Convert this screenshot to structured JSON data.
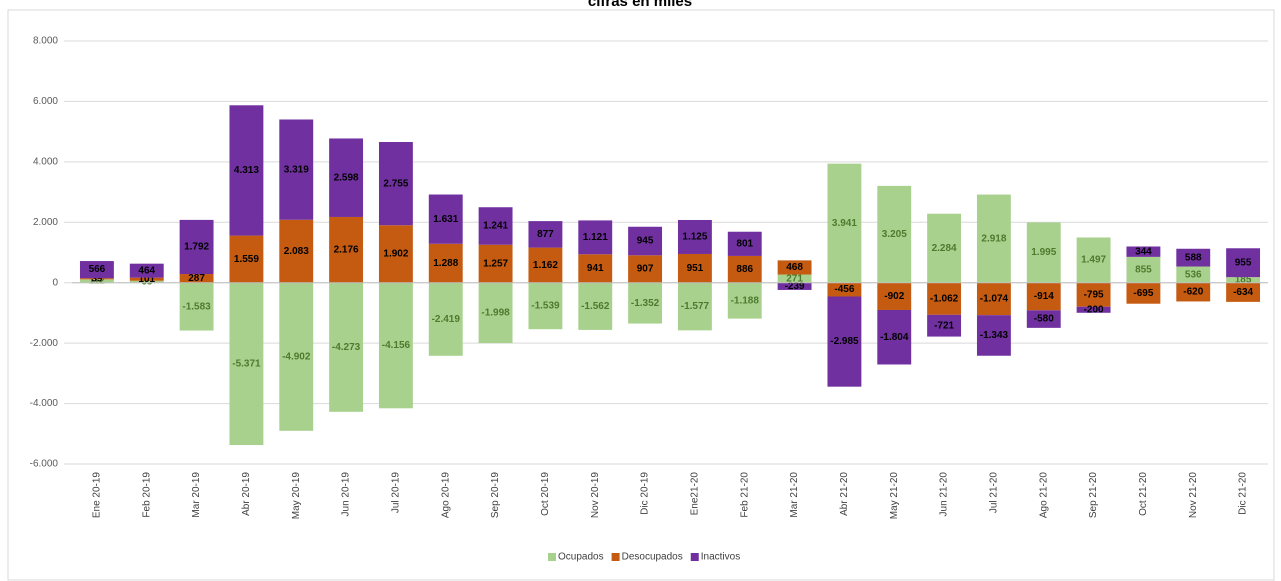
{
  "chart_data": {
    "type": "bar",
    "stacked": true,
    "title": "cifras en miles",
    "categories": [
      "Ene 20-19",
      "Feb 20-19",
      "Mar 20-19",
      "Abr 20-19",
      "May 20-19",
      "Jun 20-19",
      "Jul 20-19",
      "Ago 20-19",
      "Sep 20-19",
      "Oct 20-19",
      "Nov 20-19",
      "Dic 20-19",
      "Ene21-20",
      "Feb 21-20",
      "Mar 21-20",
      "Abr 21-20",
      "May 21-20",
      "Jun 21-20",
      "Jul 21-20",
      "Ago 21-20",
      "Sep 21-20",
      "Oct 21-20",
      "Nov 21-20",
      "Dic 21-20"
    ],
    "series": [
      {
        "name": "Ocupados",
        "color": "#a9d18e",
        "label_color": "#4e7a2e",
        "values": [
          112,
          65,
          -1583,
          -5371,
          -4902,
          -4273,
          -4156,
          -2419,
          -1998,
          -1539,
          -1562,
          -1352,
          -1577,
          -1188,
          271,
          3941,
          3205,
          2284,
          2918,
          1995,
          1497,
          855,
          536,
          185
        ],
        "value_labels": [
          "112",
          "65",
          "-1.583",
          "-5.371",
          "-4.902",
          "-4.273",
          "-4.156",
          "-2.419",
          "-1.998",
          "-1.539",
          "-1.562",
          "-1.352",
          "-1.577",
          "-1.188",
          "271",
          "3.941",
          "3.205",
          "2.284",
          "2.918",
          "1.995",
          "1.497",
          "855",
          "536",
          "185"
        ]
      },
      {
        "name": "Desocupados",
        "color": "#c55a11",
        "label_color": "#000000",
        "values": [
          39,
          101,
          287,
          1559,
          2083,
          2176,
          1902,
          1288,
          1257,
          1162,
          941,
          907,
          951,
          886,
          468,
          -456,
          -902,
          -1062,
          -1074,
          -914,
          -795,
          -695,
          -620,
          -634
        ],
        "value_labels": [
          "39",
          "101",
          "287",
          "1.559",
          "2.083",
          "2.176",
          "1.902",
          "1.288",
          "1.257",
          "1.162",
          "941",
          "907",
          "951",
          "886",
          "468",
          "-456",
          "-902",
          "-1.062",
          "-1.074",
          "-914",
          "-795",
          "-695",
          "-620",
          "-634"
        ]
      },
      {
        "name": "Inactivos",
        "color": "#7030a0",
        "label_color": "#000000",
        "values": [
          566,
          464,
          1792,
          4313,
          3319,
          2598,
          2755,
          1631,
          1241,
          877,
          1121,
          945,
          1125,
          801,
          -239,
          -2985,
          -1804,
          -721,
          -1343,
          -580,
          -200,
          344,
          588,
          955
        ],
        "value_labels": [
          "566",
          "464",
          "1.792",
          "4.313",
          "3.319",
          "2.598",
          "2.755",
          "1.631",
          "1.241",
          "877",
          "1.121",
          "945",
          "1.125",
          "801",
          "-239",
          "-2.985",
          "-1.804",
          "-721",
          "-1.343",
          "-580",
          "-200",
          "344",
          "588",
          "955"
        ]
      }
    ],
    "ylim": [
      -6000,
      8000
    ],
    "yticks": [
      {
        "value": -6000,
        "label": "-6.000"
      },
      {
        "value": -4000,
        "label": "-4.000"
      },
      {
        "value": -2000,
        "label": "-2.000"
      },
      0,
      {
        "value": 2000,
        "label": "2.000"
      },
      {
        "value": 4000,
        "label": "4.000"
      },
      {
        "value": 6000,
        "label": "6.000"
      },
      {
        "value": 8000,
        "label": "8.000"
      }
    ],
    "grid": true,
    "legend": "bottom"
  }
}
